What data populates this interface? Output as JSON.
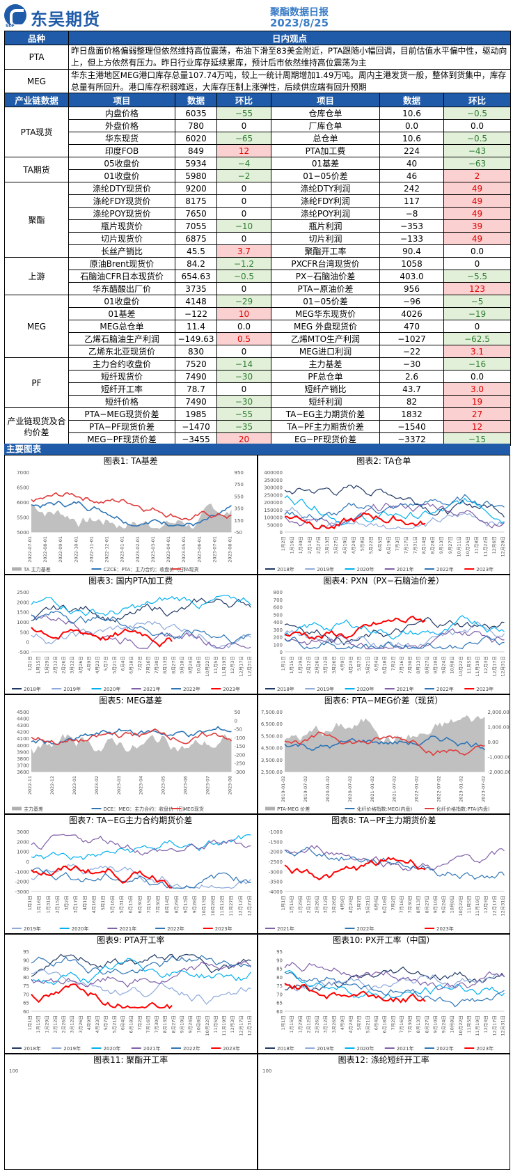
{
  "header": {
    "company": "东吴期货",
    "company_en": "SCF",
    "report_title": "聚酯数据日报",
    "date": "2023/8/25"
  },
  "view": {
    "col1": "品种",
    "col2": "日内观点",
    "rows": [
      {
        "item": "PTA",
        "text": "昨日盘面价格偏弱整理但依然维持高位震荡，布油下滑至83美金附近，PTA跟随小幅回调，目前估值水平偏中性，驱动向上，但上方依然有压力。昨日行业库存延续累库，预计后市依然维持高位震荡为主"
      },
      {
        "item": "MEG",
        "text": "华东主港地区MEG港口库存总量107.74万吨，较上一统计周期增加1.49万吨。周内主港发货一般，整体到货集中，库存总量有所回升。港口库存积弱难返，大库存压制上涨弹性，后续供应端有回升预期"
      }
    ]
  },
  "table": {
    "headers": [
      "产业链数据",
      "项目",
      "数据",
      "环比",
      "项目",
      "数据",
      "环比"
    ],
    "rows": [
      {
        "cat": "PTA现货",
        "span": 4,
        "a": [
          "内盘价格",
          "6035",
          "−55",
          "neg"
        ],
        "b": [
          "仓库仓单",
          "10.6",
          "−0.5",
          "neg"
        ]
      },
      {
        "a": [
          "外盘价格",
          "780",
          "0",
          "neu"
        ],
        "b": [
          "厂库仓单",
          "0.0",
          "0.0",
          "neu"
        ]
      },
      {
        "a": [
          "华东现货",
          "6020",
          "−65",
          "neg"
        ],
        "b": [
          "总仓单",
          "10.6",
          "−0.5",
          "neg"
        ]
      },
      {
        "a": [
          "印度FOB",
          "849",
          "12",
          "pos"
        ],
        "b": [
          "PTA加工费",
          "224",
          "−43",
          "neg"
        ]
      },
      {
        "cat": "TA期货",
        "span": 2,
        "a": [
          "05收盘价",
          "5934",
          "−4",
          "neg"
        ],
        "b": [
          "01基差",
          "40",
          "−63",
          "neg"
        ]
      },
      {
        "a": [
          "01收盘价",
          "5980",
          "−2",
          "neg"
        ],
        "b": [
          "01−05价差",
          "46",
          "2",
          "pos"
        ]
      },
      {
        "cat": "聚酯",
        "span": 6,
        "a": [
          "涤纶DTY现货价",
          "9200",
          "0",
          "neu"
        ],
        "b": [
          "涤纶DTY利润",
          "242",
          "49",
          "pos"
        ]
      },
      {
        "a": [
          "涤纶FDY现货价",
          "8175",
          "0",
          "neu"
        ],
        "b": [
          "涤纶FDY利润",
          "117",
          "49",
          "pos"
        ]
      },
      {
        "a": [
          "涤纶POY现货价",
          "7650",
          "0",
          "neu"
        ],
        "b": [
          "涤纶POY利润",
          "−8",
          "49",
          "pos"
        ]
      },
      {
        "a": [
          "瓶片现货价",
          "7055",
          "−10",
          "neg"
        ],
        "b": [
          "瓶片利润",
          "−353",
          "39",
          "pos"
        ]
      },
      {
        "a": [
          "切片现货价",
          "6875",
          "0",
          "neu"
        ],
        "b": [
          "切片利润",
          "−133",
          "49",
          "pos"
        ]
      },
      {
        "a": [
          "长丝产销比",
          "45.5",
          "3.7",
          "pos"
        ],
        "b": [
          "聚酯开工率",
          "90.4",
          "0.0",
          "neu"
        ]
      },
      {
        "cat": "上游",
        "span": 3,
        "a": [
          "原油Brent现货价",
          "84.2",
          "−1.2",
          "neg"
        ],
        "b": [
          "PXCFR台湾现货价",
          "1058",
          "0",
          "neu"
        ]
      },
      {
        "a": [
          "石脑油CFR日本现货价",
          "654.63",
          "−0.5",
          "neg"
        ],
        "b": [
          "PX−石脑油价差",
          "403.0",
          "−5.5",
          "neg"
        ]
      },
      {
        "a": [
          "华东醋酸出厂价",
          "3735",
          "0",
          "neu"
        ],
        "b": [
          "PTA−原油价差",
          "956",
          "123",
          "pos"
        ]
      },
      {
        "cat": "MEG",
        "span": 5,
        "a": [
          "01收盘价",
          "4148",
          "−29",
          "neg"
        ],
        "b": [
          "01−05价差",
          "−96",
          "−5",
          "neg"
        ]
      },
      {
        "a": [
          "01基差",
          "−122",
          "10",
          "pos"
        ],
        "b": [
          "MEG华东现货价",
          "4026",
          "−19",
          "neg"
        ]
      },
      {
        "a": [
          "MEG总仓单",
          "11.4",
          "0.0",
          "neu"
        ],
        "b": [
          "MEG 外盘现货价",
          "470",
          "0",
          "neu"
        ]
      },
      {
        "a": [
          "乙烯石脑油生产利润",
          "−149.63",
          "0.5",
          "pos"
        ],
        "b": [
          "乙烯MTO生产利润",
          "−1027",
          "−62.5",
          "neg"
        ]
      },
      {
        "a": [
          "乙烯东北亚现货价",
          "830",
          "0",
          "neu"
        ],
        "b": [
          "MEG进口利润",
          "−22",
          "3.1",
          "pos"
        ]
      },
      {
        "cat": "PF",
        "span": 4,
        "a": [
          "主力合约收盘价",
          "7520",
          "−14",
          "neg"
        ],
        "b": [
          "主力基差",
          "−30",
          "−16",
          "neg"
        ]
      },
      {
        "a": [
          "短纤现货价",
          "7490",
          "−30",
          "neg"
        ],
        "b": [
          "PF总仓单",
          "2.6",
          "0.0",
          "neu"
        ]
      },
      {
        "a": [
          "短纤开工率",
          "78.7",
          "0",
          "neu"
        ],
        "b": [
          "短纤产销比",
          "43.7",
          "3.0",
          "pos"
        ]
      },
      {
        "a": [
          "短纤价格",
          "7490",
          "−30",
          "neg"
        ],
        "b": [
          "短纤利润",
          "82",
          "19",
          "pos"
        ]
      },
      {
        "cat": "产业链现货及合约价差",
        "span": 3,
        "a": [
          "PTA−MEG现货价差",
          "1985",
          "−55",
          "neg"
        ],
        "b": [
          "TA−EG主力期货价差",
          "1832",
          "27",
          "pos"
        ]
      },
      {
        "a": [
          "PTA−PF现货价差",
          "−1470",
          "−35",
          "neg"
        ],
        "b": [
          "TA−PF主力期货价差",
          "−1540",
          "12",
          "pos"
        ]
      },
      {
        "a": [
          "MEG−PF现货价差",
          "−3455",
          "20",
          "pos"
        ],
        "b": [
          "EG−PF现货价差",
          "−3372",
          "−15",
          "neg"
        ]
      }
    ]
  },
  "section_title": "主要图表",
  "colors": {
    "brand": "#1f5ba8",
    "y2018": "#1f3864",
    "y2019": "#8eaadb",
    "y2020": "#00b0f0",
    "y2021": "#7f5fa8",
    "y2022": "#2e75b6",
    "y2023": "#ff0000",
    "gray": "#b0b0b0",
    "red": "#e03c3c",
    "blue": "#4472c4"
  },
  "charts": [
    {
      "title": "图表1: TA基差",
      "yl": [
        "7000",
        "6500",
        "6000",
        "5500",
        "5000"
      ],
      "yr": [
        "950",
        "750",
        "550",
        "350",
        "150",
        "-50"
      ],
      "xl": [
        "2022-07-01",
        "2022-08-01",
        "2022-09-01",
        "2022-10-01",
        "2022-11-01",
        "2022-12-01",
        "2023-01-01",
        "2023-02-01",
        "2023-03-01",
        "2023-04-01",
        "2023-05-01",
        "2023-06-01",
        "2023-07-01",
        "2023-08-01"
      ],
      "legend": [
        "TA 主力基差",
        "CZCE：PTA：主力合约：收盘价（日）",
        "TA现货"
      ]
    },
    {
      "title": "图表2: TA仓单",
      "yl": [
        "400000",
        "350000",
        "300000",
        "250000",
        "200000",
        "150000",
        "100000",
        "50000",
        "0"
      ],
      "xl": [
        "1月2日",
        "1月16日",
        "1月30日",
        "2月13日",
        "2月27日",
        "3月13日",
        "3月27日",
        "4月10日",
        "4月24日",
        "5月8日",
        "5月22日",
        "6月5日",
        "6月19日",
        "7月3日",
        "7月17日",
        "7月31日",
        "8月14日",
        "8月28日",
        "9月13日",
        "9月27日",
        "10月11日",
        "10月25日",
        "11月8日",
        "11月22日",
        "12月6日",
        "12月20日"
      ],
      "legend": [
        "2018年",
        "2019年",
        "2020年",
        "2021年",
        "2022年",
        "2023年"
      ]
    },
    {
      "title": "图表3: 国内PTA加工费",
      "yl": [
        "2500",
        "2000",
        "1500",
        "1000",
        "500",
        "0",
        "-500"
      ],
      "xl": [
        "1月1日",
        "1月15日",
        "1月29日",
        "2月12日",
        "2月26日",
        "3月12日",
        "3月26日",
        "4月9日",
        "4月23日",
        "5月7日",
        "5月21日",
        "6月4日",
        "6月18日",
        "7月2日",
        "7月16日",
        "7月30日",
        "8月13日",
        "8月27日",
        "9月10日",
        "9月24日",
        "10月8日",
        "10月22日",
        "11月5日",
        "11月19日",
        "12月3日",
        "12月17日",
        "12月31日"
      ],
      "legend": [
        "2018年",
        "2019年",
        "2020年",
        "2021年",
        "2022年",
        "2023年"
      ]
    },
    {
      "title": "图表4: PXN（PX−石脑油价差）",
      "yl": [
        "800",
        "700",
        "600",
        "500",
        "400",
        "300",
        "200",
        "100",
        "0"
      ],
      "xl": [
        "1月1日",
        "1月15日",
        "1月29日",
        "2月12日",
        "2月26日",
        "3月12日",
        "3月26日",
        "4月9日",
        "4月23日",
        "5月7日",
        "5月21日",
        "6月4日",
        "6月18日",
        "7月2日",
        "7月16日",
        "7月30日",
        "8月13日",
        "8月27日",
        "9月10日",
        "9月24日",
        "10月8日",
        "10月22日",
        "11月5日",
        "11月19日",
        "12月3日",
        "12月17日",
        "12月31日"
      ],
      "legend": [
        "2018年",
        "2019年",
        "2020年",
        "2021年",
        "2022年",
        "2023年"
      ]
    },
    {
      "title": "图表5: MEG基差",
      "yl": [
        "4500",
        "4400",
        "4300",
        "4200",
        "4100",
        "4000",
        "3900",
        "3800",
        "3700",
        "3600"
      ],
      "yr": [
        "50",
        "0",
        "-50",
        "-100",
        "-150",
        "-200",
        "-250",
        "-300"
      ],
      "xl": [
        "2022-11",
        "2022-12",
        "2023-01",
        "2023-02",
        "2023-03",
        "2023-04",
        "2023-05",
        "2023-06",
        "2023-07",
        "2023-08"
      ],
      "legend": [
        "主力基差",
        "DCE：MEG：主力合约：收盘价（日）",
        "MEG现货"
      ]
    },
    {
      "title": "图表6: PTA−MEG价差（现货）",
      "yl": [
        "7,500.00",
        "6,500.00",
        "5,500.00",
        "4,500.00",
        "3,500.00",
        "2,500.00"
      ],
      "yr": [
        "2,000.00",
        "1,000.00",
        "0.00",
        "-1,000.00",
        "-2,000.00"
      ],
      "xl": [
        "2019-01-02",
        "2019-07-02",
        "2020-01-02",
        "2020-07-02",
        "2021-01-02",
        "2021-07-02",
        "2022-01-02",
        "2022-07-02",
        "2023-01-02",
        "2023-07-02"
      ],
      "legend": [
        "PTA-MEG 价差",
        "化纤价格指数:MEG(内盘)",
        "化纤价格指数:PTA(内盘)"
      ]
    },
    {
      "title": "图表7: TA−EG主力合约期货价差",
      "yl": [
        "3000",
        "2000",
        "1000",
        "0",
        "-1000",
        "-2000",
        "-3000"
      ],
      "xl": [
        "1月1日",
        "1月16日",
        "1月31日",
        "2月15日",
        "3月2日",
        "3月17日",
        "4月1日",
        "4月16日",
        "5月1日",
        "5月16日",
        "5月31日",
        "6月15日",
        "6月30日",
        "7月15日",
        "7月30日",
        "8月14日",
        "8月29日",
        "9月13日",
        "9月28日",
        "10月13日",
        "10月28日",
        "11月12日",
        "11月27日",
        "12月12日",
        "12月27日"
      ],
      "legend": [
        "2019年",
        "2020年",
        "2021年",
        "2022年",
        "2023年"
      ]
    },
    {
      "title": "图表8: TA−PF主力期货价差",
      "yl": [
        "-1000",
        "-1500",
        "-2000",
        "-2500",
        "-3000",
        "-3500",
        "-4000"
      ],
      "xl": [
        "1月1日",
        "1月15日",
        "1月29日",
        "2月12日",
        "2月26日",
        "3月12日",
        "3月26日",
        "4月9日",
        "4月23日",
        "5月7日",
        "5月21日",
        "6月4日",
        "6月18日",
        "7月2日",
        "7月16日",
        "7月30日",
        "8月13日",
        "8月27日",
        "9月10日",
        "9月24日",
        "10月8日",
        "10月22日",
        "11月5日",
        "11月19日",
        "12月3日",
        "12月17日",
        "12月31日"
      ],
      "legend": [
        "2021年",
        "2022年",
        "2023年"
      ]
    },
    {
      "title": "图表9: PTA开工率",
      "yl": [
        "95",
        "90",
        "85",
        "80",
        "75",
        "70",
        "65",
        "60"
      ],
      "xl": [
        "1月1日",
        "1月15日",
        "1月29日",
        "2月12日",
        "2月26日",
        "3月12日",
        "3月26日",
        "4月9日",
        "4月23日",
        "5月7日",
        "5月21日",
        "6月4日",
        "6月18日",
        "7月2日",
        "7月16日",
        "7月30日",
        "8月13日",
        "8月27日",
        "9月10日",
        "9月24日",
        "10月8日",
        "10月22日",
        "11月5日",
        "11月19日",
        "12月3日",
        "12月17日",
        "12月31日"
      ],
      "legend": [
        "2018年",
        "2019年",
        "2020年",
        "2021年",
        "2022年",
        "2023年"
      ]
    },
    {
      "title": "图表10: PX开工率（中国）",
      "yl": [
        "95",
        "90",
        "85",
        "80",
        "75",
        "70",
        "65",
        "60"
      ],
      "xl": [
        "1月1日",
        "1月15日",
        "1月29日",
        "2月12日",
        "2月26日",
        "3月12日",
        "3月26日",
        "4月9日",
        "4月23日",
        "5月7日",
        "5月21日",
        "6月4日",
        "6月18日",
        "7月2日",
        "7月16日",
        "7月30日",
        "8月13日",
        "8月27日",
        "9月10日",
        "9月24日",
        "10月8日",
        "10月22日",
        "11月5日",
        "11月19日",
        "12月3日",
        "12月17日",
        "12月31日"
      ],
      "legend": [
        "2018年",
        "2019年",
        "2020年",
        "2021年",
        "2022年",
        "2023年"
      ]
    },
    {
      "title": "图表11: 聚酯开工率",
      "yl": [
        "100"
      ],
      "xl": [],
      "legend": []
    },
    {
      "title": "图表12: 涤纶短纤开工率",
      "yl": [
        "100"
      ],
      "xl": [],
      "legend": []
    }
  ]
}
